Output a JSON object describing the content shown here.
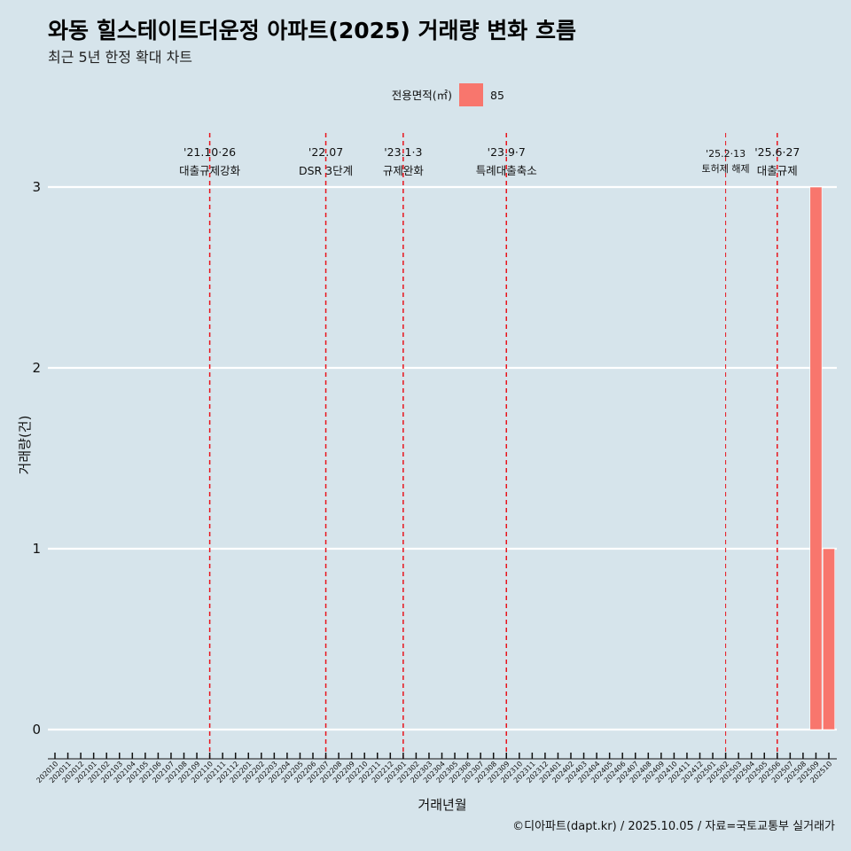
{
  "chart_data": {
    "type": "bar",
    "title": "와동 힐스테이트더운정 아파트(2025) 거래량 변화 흐름",
    "subtitle": "최근 5년 한정 확대 차트",
    "xlabel": "거래년월",
    "ylabel": "거래량(건)",
    "caption": "©디아파트(dapt.kr) / 2025.10.05 / 자료=국토교통부 실거래가",
    "ylim": [
      0,
      3
    ],
    "yticks": [
      0,
      1,
      2,
      3
    ],
    "legend": {
      "title": "전용면적(㎡)",
      "position": "top",
      "entries": [
        {
          "label": "85",
          "color": "#f8766d"
        }
      ]
    },
    "categories": [
      "202010",
      "202011",
      "202012",
      "202101",
      "202102",
      "202103",
      "202104",
      "202105",
      "202106",
      "202107",
      "202108",
      "202109",
      "202110",
      "202111",
      "202112",
      "202201",
      "202202",
      "202203",
      "202204",
      "202205",
      "202206",
      "202207",
      "202208",
      "202209",
      "202210",
      "202211",
      "202212",
      "202301",
      "202302",
      "202303",
      "202304",
      "202305",
      "202306",
      "202307",
      "202308",
      "202309",
      "202310",
      "202311",
      "202312",
      "202401",
      "202402",
      "202403",
      "202404",
      "202405",
      "202406",
      "202407",
      "202408",
      "202409",
      "202410",
      "202411",
      "202412",
      "202501",
      "202502",
      "202503",
      "202504",
      "202505",
      "202506",
      "202507",
      "202508",
      "202509",
      "202510"
    ],
    "series": [
      {
        "name": "85",
        "color": "#f8766d",
        "values": [
          0,
          0,
          0,
          0,
          0,
          0,
          0,
          0,
          0,
          0,
          0,
          0,
          0,
          0,
          0,
          0,
          0,
          0,
          0,
          0,
          0,
          0,
          0,
          0,
          0,
          0,
          0,
          0,
          0,
          0,
          0,
          0,
          0,
          0,
          0,
          0,
          0,
          0,
          0,
          0,
          0,
          0,
          0,
          0,
          0,
          0,
          0,
          0,
          0,
          0,
          0,
          0,
          0,
          0,
          0,
          0,
          0,
          0,
          0,
          3,
          1
        ]
      }
    ],
    "events": [
      {
        "month": "202110",
        "date": "'21.10·26",
        "label": "대출규제강화",
        "size": "normal"
      },
      {
        "month": "202207",
        "date": "'22.07",
        "label": "DSR 3단계",
        "size": "normal"
      },
      {
        "month": "202301",
        "date": "'23.1·3",
        "label": "규제완화",
        "size": "normal"
      },
      {
        "month": "202309",
        "date": "'23.9·7",
        "label": "특례대출축소",
        "size": "normal"
      },
      {
        "month": "202502",
        "date": "'25.2·13",
        "label": "토허제 해제",
        "size": "small"
      },
      {
        "month": "202506",
        "date": "'25.6·27",
        "label": "대출규제",
        "size": "normal"
      }
    ],
    "event_line_color": "#e8141c",
    "grid": true
  }
}
